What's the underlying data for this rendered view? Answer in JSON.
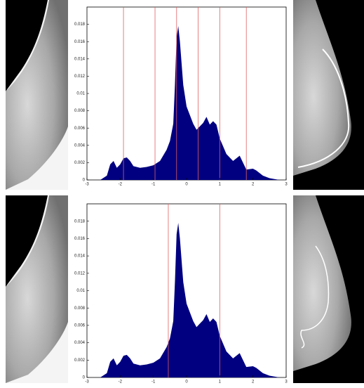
{
  "chart_data": [
    {
      "type": "area",
      "color": "#000080",
      "xlim": [
        -3,
        3
      ],
      "ylim": [
        0,
        0.02
      ],
      "xticks": [
        -3,
        -2,
        -1,
        0,
        1,
        2,
        3
      ],
      "yticks": [
        0,
        0.002,
        0.004,
        0.006,
        0.008,
        0.01,
        0.012,
        0.014,
        0.016,
        0.018
      ],
      "threshold_color": "#e06060",
      "thresholds": [
        -1.9,
        -0.95,
        -0.3,
        0.35,
        1.0,
        1.8
      ],
      "x": [
        -2.6,
        -2.4,
        -2.3,
        -2.2,
        -2.1,
        -2.0,
        -1.9,
        -1.8,
        -1.7,
        -1.6,
        -1.4,
        -1.2,
        -1.0,
        -0.8,
        -0.6,
        -0.5,
        -0.4,
        -0.35,
        -0.3,
        -0.25,
        -0.2,
        -0.1,
        0.0,
        0.1,
        0.2,
        0.3,
        0.4,
        0.5,
        0.6,
        0.7,
        0.8,
        0.9,
        1.0,
        1.2,
        1.4,
        1.5,
        1.6,
        1.7,
        1.8,
        2.0,
        2.1,
        2.3,
        2.5,
        2.8
      ],
      "values": [
        0,
        0.0005,
        0.0018,
        0.0022,
        0.0014,
        0.0018,
        0.0025,
        0.0026,
        0.0022,
        0.0016,
        0.0014,
        0.0015,
        0.0017,
        0.0022,
        0.0035,
        0.0045,
        0.0065,
        0.011,
        0.0165,
        0.0178,
        0.016,
        0.011,
        0.0085,
        0.0075,
        0.0065,
        0.0058,
        0.0062,
        0.0066,
        0.0073,
        0.0064,
        0.0068,
        0.0064,
        0.0048,
        0.003,
        0.0022,
        0.0025,
        0.0028,
        0.002,
        0.0012,
        0.0013,
        0.0011,
        0.0005,
        0.0002,
        0
      ]
    },
    {
      "type": "area",
      "color": "#000080",
      "xlim": [
        -3,
        3
      ],
      "ylim": [
        0,
        0.02
      ],
      "xticks": [
        -3,
        -2,
        -1,
        0,
        1,
        2,
        3
      ],
      "yticks": [
        0,
        0.002,
        0.004,
        0.006,
        0.008,
        0.01,
        0.012,
        0.014,
        0.016,
        0.018
      ],
      "threshold_color": "#e06060",
      "thresholds": [
        -0.55,
        1.0
      ],
      "x": [
        -2.6,
        -2.4,
        -2.3,
        -2.2,
        -2.1,
        -2.0,
        -1.9,
        -1.8,
        -1.7,
        -1.6,
        -1.4,
        -1.2,
        -1.0,
        -0.8,
        -0.6,
        -0.5,
        -0.4,
        -0.35,
        -0.3,
        -0.25,
        -0.2,
        -0.1,
        0.0,
        0.1,
        0.2,
        0.3,
        0.4,
        0.5,
        0.6,
        0.7,
        0.8,
        0.9,
        1.0,
        1.2,
        1.4,
        1.5,
        1.6,
        1.7,
        1.8,
        2.0,
        2.1,
        2.3,
        2.5,
        2.8
      ],
      "values": [
        0,
        0.0005,
        0.0018,
        0.0022,
        0.0014,
        0.0018,
        0.0025,
        0.0026,
        0.0022,
        0.0016,
        0.0014,
        0.0015,
        0.0017,
        0.0022,
        0.0035,
        0.0045,
        0.0065,
        0.011,
        0.0165,
        0.0178,
        0.016,
        0.011,
        0.0085,
        0.0075,
        0.0065,
        0.0058,
        0.0062,
        0.0066,
        0.0073,
        0.0064,
        0.0068,
        0.0064,
        0.0048,
        0.003,
        0.0022,
        0.0025,
        0.0028,
        0.002,
        0.0012,
        0.0013,
        0.0011,
        0.0005,
        0.0002,
        0
      ]
    }
  ]
}
